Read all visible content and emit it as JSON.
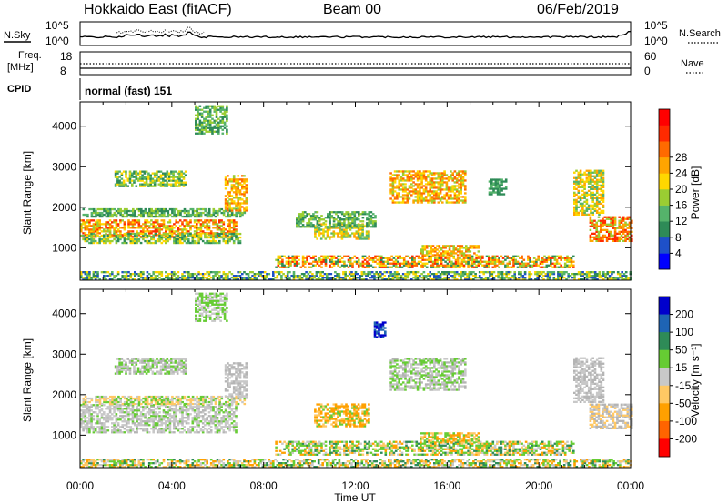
{
  "header": {
    "station": "Hokkaido East (fitACF)",
    "beam": "Beam 00",
    "date": "06/Feb/2019"
  },
  "nsky_panel": {
    "left_label": "N.Sky",
    "right_label": "N.Search",
    "y_tick_top": "10^5",
    "y_tick_bottom": "10^0",
    "r_tick_top": "10^5",
    "r_tick_bottom": "10^0"
  },
  "freq_panel": {
    "left_label_1": "Freq.",
    "left_label_2": "[MHz]",
    "right_label": "Nave",
    "y_tick_top": "18",
    "y_tick_bottom": "8",
    "r_tick_top": "60",
    "r_tick_bottom": "0"
  },
  "cpid": {
    "label": "CPID",
    "value": "normal (fast) 151"
  },
  "chart_data": [
    {
      "type": "heatmap",
      "name": "Power",
      "ylabel": "Slant Range [km]",
      "xlabel": "",
      "x_range_hours": [
        0,
        24
      ],
      "ylim": [
        200,
        4600
      ],
      "y_ticks": [
        "1000",
        "2000",
        "3000",
        "4000"
      ],
      "colorbar_label": "Power [dB]",
      "colorbar_ticks": [
        "4",
        "8",
        "12",
        "16",
        "20",
        "24",
        "28"
      ],
      "colorbar_colors": [
        "#0000ff",
        "#1e50c8",
        "#2e8b57",
        "#55b36b",
        "#9acd32",
        "#ffd700",
        "#ffa500",
        "#ff6a00",
        "#ff2a00",
        "#ff0000"
      ]
    },
    {
      "type": "heatmap",
      "name": "Velocity",
      "ylabel": "Slant Range [km]",
      "xlabel": "Time UT",
      "x_range_hours": [
        0,
        24
      ],
      "ylim": [
        200,
        4600
      ],
      "y_ticks": [
        "1000",
        "2000",
        "3000",
        "4000"
      ],
      "x_ticks": [
        "00:00",
        "04:00",
        "08:00",
        "12:00",
        "16:00",
        "20:00",
        "00:00"
      ],
      "colorbar_label": "Velocity [m s⁻¹]",
      "colorbar_ticks": [
        "200",
        "100",
        "50",
        "15",
        "-15",
        "-50",
        "-100",
        "-200"
      ],
      "colorbar_colors": [
        "#0000cc",
        "#1e64b4",
        "#2e8b57",
        "#66cc33",
        "#c8c8c8",
        "#ffc864",
        "#ffa000",
        "#ff6400",
        "#ff0000"
      ]
    }
  ],
  "echo_regions_power": [
    {
      "t0": 0.0,
      "t1": 6.8,
      "r0": 1250,
      "r1": 1700,
      "c": [
        "#ff2a00",
        "#ff6a00",
        "#ffa500",
        "#ffd700",
        "#9acd32"
      ]
    },
    {
      "t0": 0.0,
      "t1": 7.0,
      "r0": 1100,
      "r1": 1350,
      "c": [
        "#9acd32",
        "#55b36b",
        "#ffd700",
        "#2e8b57"
      ]
    },
    {
      "t0": 0.1,
      "t1": 7.2,
      "r0": 1750,
      "r1": 1950,
      "c": [
        "#55b36b",
        "#2e8b57",
        "#9acd32"
      ]
    },
    {
      "t0": 1.5,
      "t1": 4.6,
      "r0": 2500,
      "r1": 2900,
      "c": [
        "#9acd32",
        "#55b36b",
        "#ffd700",
        "#2e8b57"
      ]
    },
    {
      "t0": 6.3,
      "t1": 7.2,
      "r0": 1900,
      "r1": 2800,
      "c": [
        "#ffa500",
        "#ff6a00",
        "#9acd32",
        "#ffd700"
      ]
    },
    {
      "t0": 10.2,
      "t1": 12.6,
      "r0": 1200,
      "r1": 1600,
      "c": [
        "#ffa500",
        "#ffd700",
        "#9acd32",
        "#55b36b"
      ]
    },
    {
      "t0": 9.4,
      "t1": 12.9,
      "r0": 1500,
      "r1": 1900,
      "c": [
        "#2e8b57",
        "#55b36b",
        "#9acd32"
      ]
    },
    {
      "t0": 8.5,
      "t1": 21.5,
      "r0": 500,
      "r1": 800,
      "c": [
        "#ff2a00",
        "#ff6a00",
        "#ffa500",
        "#ffd700",
        "#9acd32",
        "#2e8b57"
      ]
    },
    {
      "t0": 14.8,
      "t1": 17.4,
      "r0": 800,
      "r1": 1050,
      "c": [
        "#ffa500",
        "#ffd700",
        "#9acd32",
        "#ff6a00"
      ]
    },
    {
      "t0": 13.5,
      "t1": 16.8,
      "r0": 2100,
      "r1": 2900,
      "c": [
        "#ffd700",
        "#ffa500",
        "#9acd32",
        "#ff6a00"
      ]
    },
    {
      "t0": 22.2,
      "t1": 24.0,
      "r0": 1150,
      "r1": 1750,
      "c": [
        "#ff2a00",
        "#ff6a00",
        "#ffa500",
        "#9acd32"
      ]
    },
    {
      "t0": 21.5,
      "t1": 22.8,
      "r0": 1800,
      "r1": 2900,
      "c": [
        "#ffa500",
        "#ffd700",
        "#9acd32",
        "#55b36b"
      ]
    },
    {
      "t0": 0.0,
      "t1": 24.0,
      "r0": 200,
      "r1": 420,
      "c": [
        "#2e8b57",
        "#55b36b",
        "#9acd32",
        "#1e50c8",
        "#ffd700"
      ]
    },
    {
      "t0": 5.0,
      "t1": 6.4,
      "r0": 3800,
      "r1": 4500,
      "c": [
        "#55b36b",
        "#2e8b57",
        "#9acd32"
      ]
    },
    {
      "t0": 17.8,
      "t1": 18.6,
      "r0": 2300,
      "r1": 2700,
      "c": [
        "#2e8b57",
        "#55b36b"
      ]
    }
  ],
  "echo_regions_velocity": [
    {
      "t0": 0.0,
      "t1": 6.8,
      "r0": 1050,
      "r1": 1750,
      "c": [
        "#c8c8c8",
        "#c8c8c8",
        "#c8c8c8",
        "#b4b4b4",
        "#66cc33"
      ]
    },
    {
      "t0": 0.1,
      "t1": 7.2,
      "r0": 1750,
      "r1": 1950,
      "c": [
        "#c8c8c8",
        "#ffc864",
        "#66cc33"
      ]
    },
    {
      "t0": 1.5,
      "t1": 4.6,
      "r0": 2500,
      "r1": 2900,
      "c": [
        "#c8c8c8",
        "#b4b4b4",
        "#66cc33"
      ]
    },
    {
      "t0": 6.3,
      "t1": 7.2,
      "r0": 1900,
      "r1": 2800,
      "c": [
        "#c8c8c8",
        "#b4b4b4"
      ]
    },
    {
      "t0": 10.2,
      "t1": 12.6,
      "r0": 1200,
      "r1": 1750,
      "c": [
        "#ffa000",
        "#ffc864",
        "#66cc33",
        "#ffa000"
      ]
    },
    {
      "t0": 8.5,
      "t1": 21.5,
      "r0": 500,
      "r1": 850,
      "c": [
        "#66cc33",
        "#66cc33",
        "#2e8b57",
        "#ffc864",
        "#c8c8c8",
        "#ffa000"
      ]
    },
    {
      "t0": 14.8,
      "t1": 17.4,
      "r0": 800,
      "r1": 1050,
      "c": [
        "#ffc864",
        "#ffa000",
        "#66cc33"
      ]
    },
    {
      "t0": 13.5,
      "t1": 16.8,
      "r0": 2100,
      "r1": 2900,
      "c": [
        "#c8c8c8",
        "#b4b4b4",
        "#66cc33"
      ]
    },
    {
      "t0": 22.2,
      "t1": 24.0,
      "r0": 1150,
      "r1": 1750,
      "c": [
        "#c8c8c8",
        "#b4b4b4",
        "#ffc864"
      ]
    },
    {
      "t0": 21.5,
      "t1": 22.8,
      "r0": 1800,
      "r1": 2900,
      "c": [
        "#c8c8c8",
        "#b4b4b4"
      ]
    },
    {
      "t0": 0.0,
      "t1": 24.0,
      "r0": 200,
      "r1": 420,
      "c": [
        "#ffc864",
        "#66cc33",
        "#c8c8c8",
        "#2e8b57",
        "#ffa000"
      ]
    },
    {
      "t0": 12.8,
      "t1": 13.3,
      "r0": 3400,
      "r1": 3800,
      "c": [
        "#0000cc",
        "#1e64b4"
      ]
    },
    {
      "t0": 5.0,
      "t1": 6.4,
      "r0": 3800,
      "r1": 4500,
      "c": [
        "#c8c8c8",
        "#66cc33"
      ]
    }
  ]
}
